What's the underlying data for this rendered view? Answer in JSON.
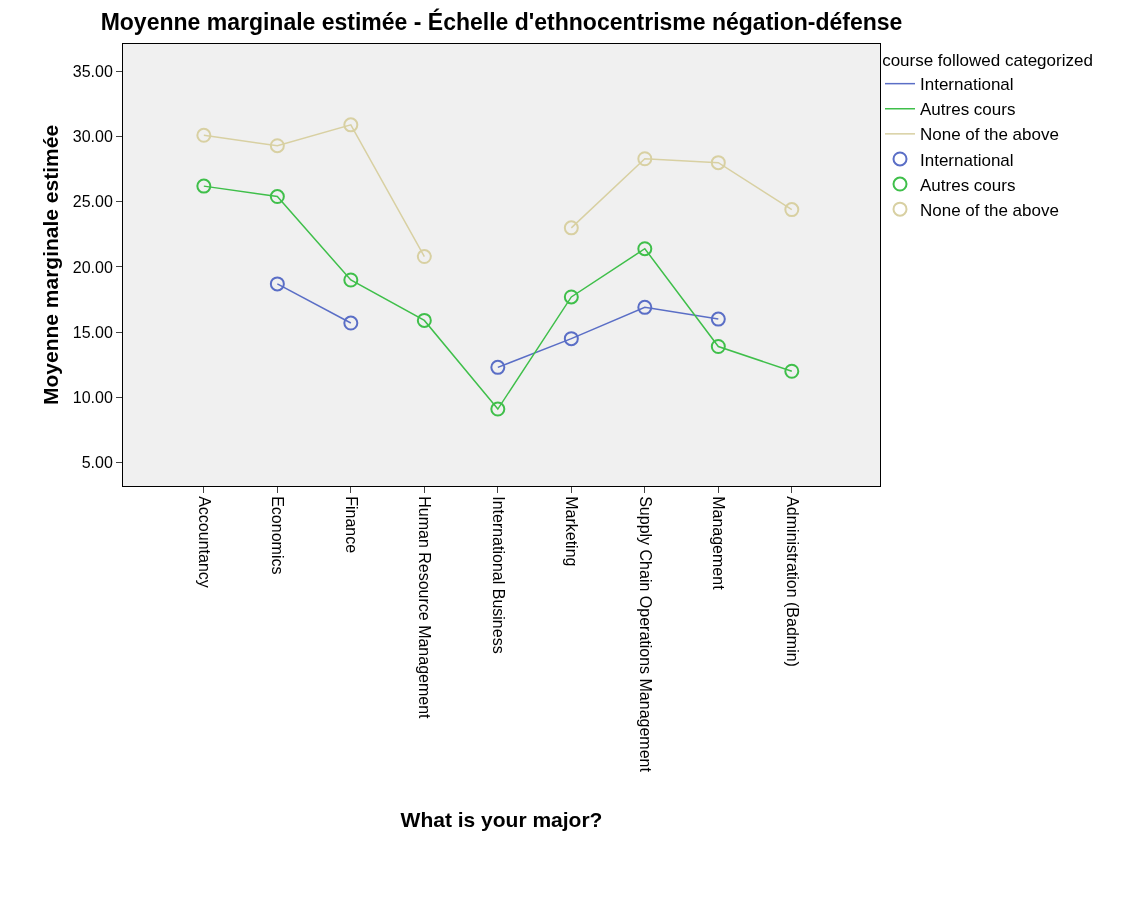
{
  "chart_data": {
    "type": "line",
    "title": "Moyenne marginale estimée - Échelle d'ethnocentrisme négation-défense",
    "xlabel": "What is your major?",
    "ylabel": "Moyenne marginale estimée",
    "legend_title": "course followed categorized",
    "categories": [
      "Accountancy",
      "Economics",
      "Finance",
      "Human Resource Management",
      "International Business",
      "Marketing",
      "Supply Chain Operations Management",
      "Management",
      "Administration (Badmin)"
    ],
    "series": [
      {
        "name": "International",
        "type": "line",
        "marker": "none",
        "color": "#5a6ec6",
        "values": [
          null,
          18.7,
          15.7,
          null,
          12.3,
          14.5,
          16.9,
          16.0,
          null
        ]
      },
      {
        "name": "Autres cours",
        "type": "line",
        "marker": "none",
        "color": "#3fbf4a",
        "values": [
          26.2,
          25.4,
          19.0,
          15.9,
          9.1,
          17.7,
          21.4,
          13.9,
          12.0
        ]
      },
      {
        "name": "None of the above",
        "type": "line",
        "marker": "none",
        "color": "#d8d0a2",
        "values": [
          30.1,
          29.3,
          30.9,
          20.8,
          null,
          23.0,
          28.3,
          28.0,
          24.4
        ]
      },
      {
        "name": "International",
        "type": "scatter",
        "marker": "circle",
        "color": "#5a6ec6",
        "values": [
          null,
          18.7,
          15.7,
          null,
          12.3,
          14.5,
          16.9,
          16.0,
          null
        ]
      },
      {
        "name": "Autres cours",
        "type": "scatter",
        "marker": "circle",
        "color": "#3fbf4a",
        "values": [
          26.2,
          25.4,
          19.0,
          15.9,
          9.1,
          17.7,
          21.4,
          13.9,
          12.0
        ]
      },
      {
        "name": "None of the above",
        "type": "scatter",
        "marker": "circle",
        "color": "#d8d0a2",
        "values": [
          30.1,
          29.3,
          30.9,
          20.8,
          null,
          23.0,
          28.3,
          28.0,
          24.4
        ]
      }
    ],
    "ylim": [
      3.2,
      37.1
    ],
    "yticks": [
      {
        "value": 5,
        "label": "5.00"
      },
      {
        "value": 10,
        "label": "10.00"
      },
      {
        "value": 15,
        "label": "15.00"
      },
      {
        "value": 20,
        "label": "20.00"
      },
      {
        "value": 25,
        "label": "25.00"
      },
      {
        "value": 30,
        "label": "30.00"
      },
      {
        "value": 35,
        "label": "35.00"
      }
    ],
    "grid": false,
    "legend": "top right"
  }
}
